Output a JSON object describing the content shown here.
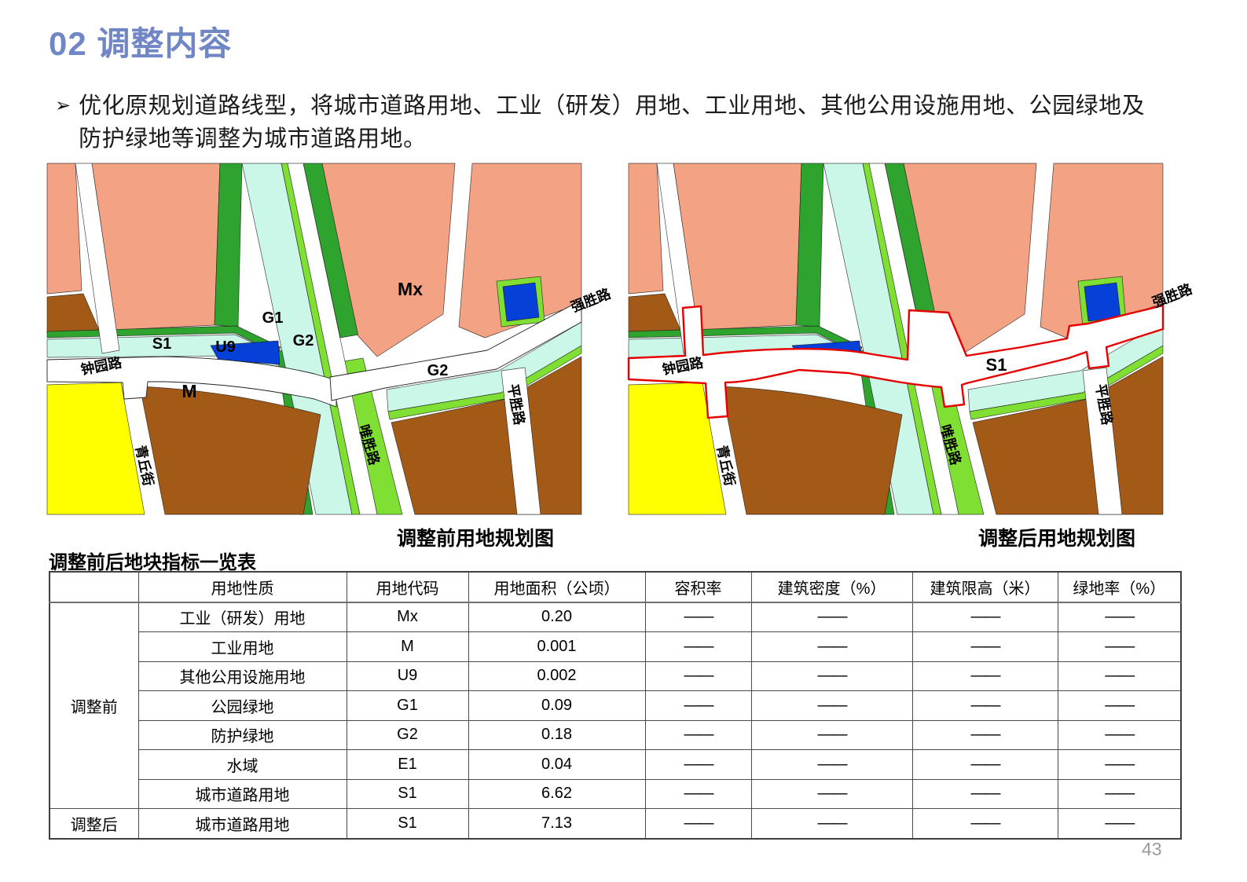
{
  "title": {
    "text": "02 调整内容",
    "color": "#7186C5"
  },
  "bullet": {
    "marker": "➢",
    "text": "优化原规划道路线型，将城市道路用地、工业（研发）用地、工业用地、其他公用设施用地、公园绿地及防护绿地等调整为城市道路用地。"
  },
  "maps": {
    "colors": {
      "salmon": "#F3A284",
      "brown": "#A45A17",
      "yellow": "#FFFF00",
      "dark_green": "#2EA32E",
      "bright_green": "#7FDF33",
      "water": "#CBF7E8",
      "blue": "#0540D8",
      "road_white": "#FFFFFF",
      "outline": "#1F1F1F",
      "adjust_red": "#E60000"
    },
    "before": {
      "caption": "调整前用地规划图",
      "labels": {
        "mx": "Mx",
        "g1": "G1",
        "u9": "U9",
        "g2_west": "G2",
        "s1": "S1",
        "m": "M",
        "g2_east": "G2"
      },
      "roads": {
        "zhongyuanlu": "钟园路",
        "qingqiujie": "青丘街",
        "weishenglu": "唯胜路",
        "pingshenglu": "平胜路",
        "qiangshenglu": "强胜路"
      }
    },
    "after": {
      "caption": "调整后用地规划图",
      "labels": {
        "s1": "S1"
      },
      "roads": {
        "zhongyuanlu": "钟园路",
        "qingqiujie": "青丘街",
        "weishenglu": "唯胜路",
        "pingshenglu": "平胜路",
        "qiangshenglu": "强胜路"
      }
    }
  },
  "table": {
    "title": "调整前后地块指标一览表",
    "headers": [
      "",
      "用地性质",
      "用地代码",
      "用地面积（公顷）",
      "容积率",
      "建筑密度（%）",
      "建筑限高（米）",
      "绿地率（%）"
    ],
    "groups": [
      {
        "label": "调整前",
        "rows": [
          [
            "工业（研发）用地",
            "Mx",
            "0.20",
            "——",
            "——",
            "——",
            "——"
          ],
          [
            "工业用地",
            "M",
            "0.001",
            "——",
            "——",
            "——",
            "——"
          ],
          [
            "其他公用设施用地",
            "U9",
            "0.002",
            "——",
            "——",
            "——",
            "——"
          ],
          [
            "公园绿地",
            "G1",
            "0.09",
            "——",
            "——",
            "——",
            "——"
          ],
          [
            "防护绿地",
            "G2",
            "0.18",
            "——",
            "——",
            "——",
            "——"
          ],
          [
            "水域",
            "E1",
            "0.04",
            "——",
            "——",
            "——",
            "——"
          ],
          [
            "城市道路用地",
            "S1",
            "6.62",
            "——",
            "——",
            "——",
            "——"
          ]
        ]
      },
      {
        "label": "调整后",
        "rows": [
          [
            "城市道路用地",
            "S1",
            "7.13",
            "——",
            "——",
            "——",
            "——"
          ]
        ]
      }
    ]
  },
  "page_number": "43"
}
